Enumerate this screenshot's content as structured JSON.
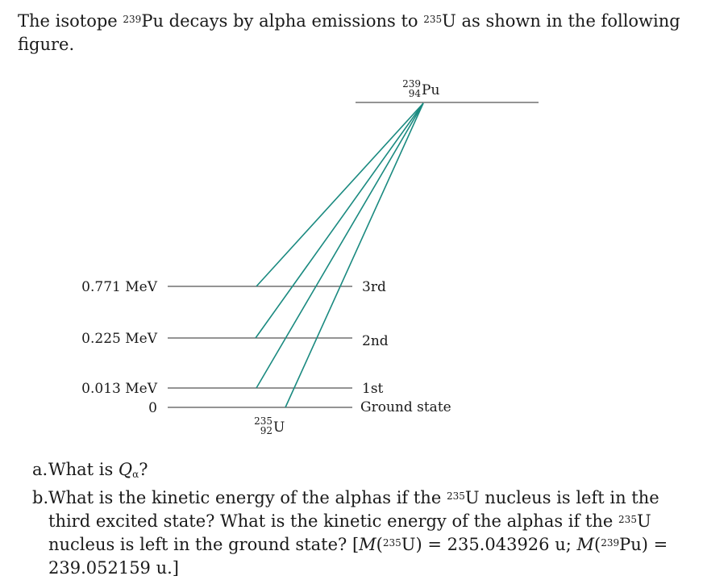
{
  "intro": {
    "part1": "The isotope ",
    "pu_mass": "239",
    "part2": "Pu decays by alpha emissions to ",
    "u_mass": "235",
    "part3": "U as shown in the following figure."
  },
  "diagram": {
    "parent": {
      "mass": "239",
      "z": "94",
      "symbol": "Pu"
    },
    "daughter": {
      "mass": "235",
      "z": "92",
      "symbol": "U"
    },
    "levels": [
      {
        "energy_label": "0.771 MeV",
        "name": "3rd",
        "energy_mev": 0.771
      },
      {
        "energy_label": "0.225 MeV",
        "name": "2nd",
        "energy_mev": 0.225
      },
      {
        "energy_label": "0.013 MeV",
        "name": "1st",
        "energy_mev": 0.013
      },
      {
        "energy_label": "0",
        "name": "Ground state",
        "energy_mev": 0
      }
    ],
    "line_color": "#555555",
    "arrow_color": "#1a8a80"
  },
  "questions": {
    "a": {
      "label": "a.",
      "text1": "What is ",
      "q_symbol": "Q",
      "q_sub": "α",
      "text2": "?"
    },
    "b": {
      "label": "b.",
      "t1": "What is the kinetic energy of the alphas if the ",
      "m1": "235",
      "t2": "U nucleus is left in the third excited state? What is the kinetic energy of the alphas if the ",
      "m2": "235",
      "t3": "U nucleus is left in the ground state? [",
      "M1": "M",
      "m3": "235",
      "t4": "U) = 235.043926 u; ",
      "M2": "M",
      "m4": "239",
      "t5": "Pu) = 239.052159 u.]",
      "paren": "("
    }
  }
}
